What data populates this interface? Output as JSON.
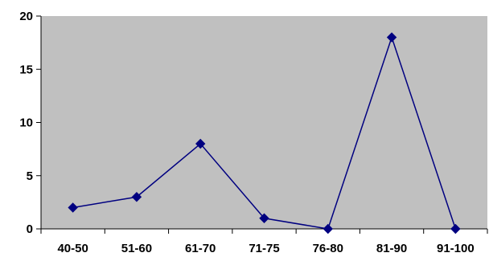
{
  "chart_data": {
    "type": "line",
    "title": "",
    "xlabel": "",
    "ylabel": "",
    "categories": [
      "40-50",
      "51-60",
      "61-70",
      "71-75",
      "76-80",
      "81-90",
      "91-100"
    ],
    "series": [
      {
        "values": [
          2,
          3,
          8,
          1,
          0,
          18,
          0
        ]
      }
    ],
    "ylim": [
      0,
      20
    ],
    "yticks": [
      0,
      5,
      10,
      15,
      20
    ],
    "grid": false,
    "legend": "none",
    "plot_background": "#c0c0c0",
    "line_color": "#000080"
  }
}
